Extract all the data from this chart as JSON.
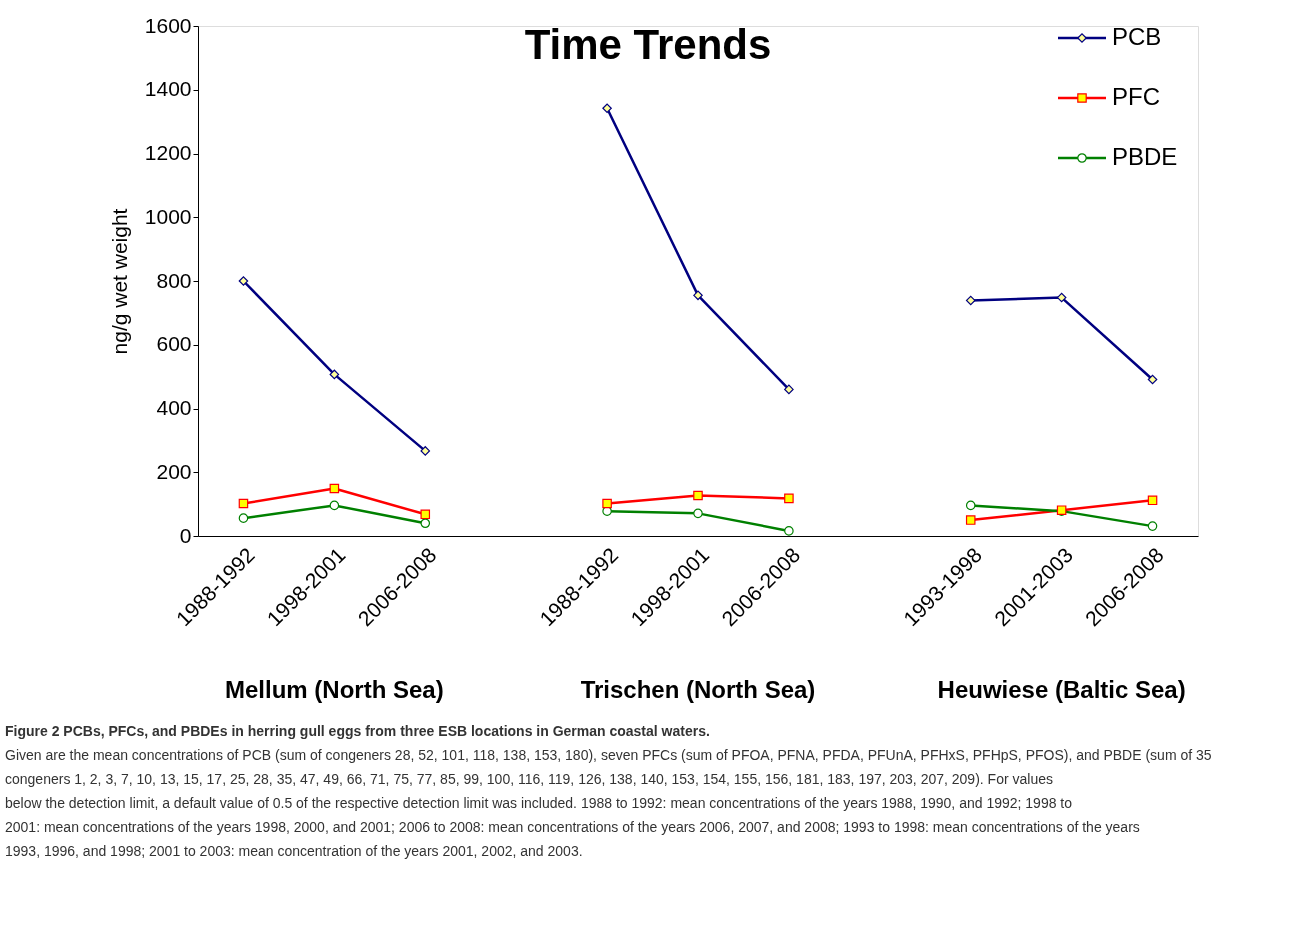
{
  "chart_data": {
    "type": "line",
    "title": "Time Trends",
    "ylabel": "ng/g wet weight",
    "categories": [
      "1988-1992",
      "1998-2001",
      "2006-2008",
      null,
      "1988-1992",
      "1998-2001",
      "2006-2008",
      null,
      "1993-1998",
      "2001-2003",
      "2006-2008"
    ],
    "series": [
      {
        "name": "PCB",
        "color": "#000080",
        "marker": "diamond",
        "values": [
          800,
          507,
          267,
          null,
          1342,
          755,
          460,
          null,
          739,
          748,
          491
        ]
      },
      {
        "name": "PFC",
        "color": "#ff0000",
        "marker": "square",
        "values": [
          102,
          149,
          68,
          null,
          102,
          127,
          118,
          null,
          50,
          81,
          112
        ]
      },
      {
        "name": "PBDE",
        "color": "#008000",
        "marker": "circle",
        "values": [
          56,
          96,
          40,
          null,
          78,
          71,
          16,
          null,
          96,
          78,
          31
        ]
      }
    ],
    "ylim": [
      0,
      1600
    ],
    "yticks": [
      0,
      200,
      400,
      600,
      800,
      1000,
      1200,
      1400,
      1600
    ],
    "grid": false,
    "legend": "top right",
    "annotations": [
      "Mellum (North Sea)",
      "Trischen (North Sea)",
      "Heuwiese (Baltic Sea)",
      "Figure 2 PCBs, PFCs, and PBDEs in herring gull eggs from three ESB locations in German coastal waters.",
      "Given are the mean concentrations of PCB (sum of congeners 28, 52, 101, 118, 138, 153, 180), seven PFCs (sum of PFOA, PFNA, PFDA, PFUnA, PFHxS, PFHpS, PFOS), and PBDE (sum of 35 congeners 1, 2, 3, 7, 10, 13, 15, 17, 25, 28, 35, 47, 49, 66, 71, 75, 77, 85, 99, 100, 116, 119, 126, 138, 140, 153, 154, 155, 156, 181, 183, 197, 203, 207, 209). For values below the detection limit, a default value of 0.5 of the respective detection limit was included. 1988 to 1992: mean concentrations of the years 1988, 1990, and 1992; 1998 to 2001: mean concentrations of the years 1998, 2000, and 2001; 2006 to 2008: mean concentrations of the years 2006, 2007, and 2008; 1993 to 1998: mean concentrations of the years 1993, 1996, and 1998; 2001 to 2003: mean concentration of the years 2001, 2002, and 2003."
    ]
  }
}
